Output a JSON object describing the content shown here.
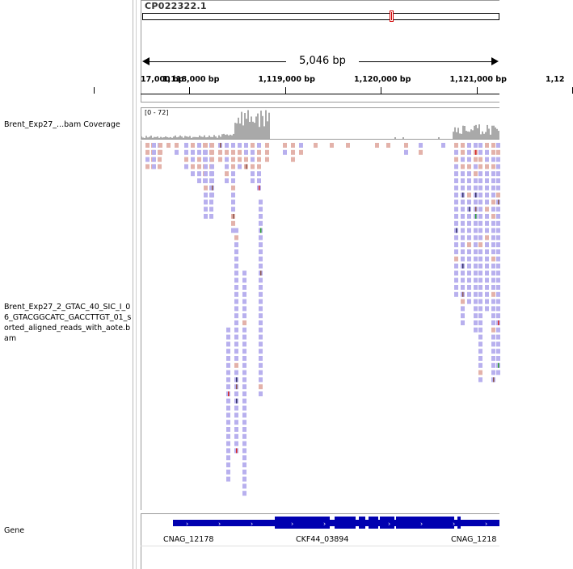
{
  "header": {
    "chromosome": "CP022322.1",
    "span_label": "5,046 bp",
    "ticks": [
      {
        "label": "17,000 bp",
        "pos": 1117000
      },
      {
        "label": "1,118,000 bp",
        "pos": 1118000
      },
      {
        "label": "1,119,000 bp",
        "pos": 1119000
      },
      {
        "label": "1,120,000 bp",
        "pos": 1120000
      },
      {
        "label": "1,121,000 bp",
        "pos": 1121000
      },
      {
        "label": "1,12",
        "pos": 1122000
      }
    ]
  },
  "tracks": {
    "coverage_name": "Brent_Exp27_...bam Coverage",
    "coverage_range": "[0 - 72]",
    "alignment_name": "Brent_Exp27_2_GTAC_40_SIC_I_06_GTACGGCATC_GACCTTGT_01_sorted_aligned_reads_with_aote.bam",
    "gene_name": "Gene"
  },
  "genes": [
    {
      "label": "CNAG_12178"
    },
    {
      "label": "CKF44_03894"
    },
    {
      "label": "CNAG_1218"
    }
  ],
  "colors": {
    "coverage": "#a9a9a9",
    "read": "#b8b0ee",
    "read_pink": "#e3b2aa",
    "gene": "#0000b0",
    "mismatch_green": "#2ca02c",
    "mismatch_red": "#d62728",
    "mismatch_brown": "#8c564b",
    "mismatch_dark": "#333366"
  }
}
